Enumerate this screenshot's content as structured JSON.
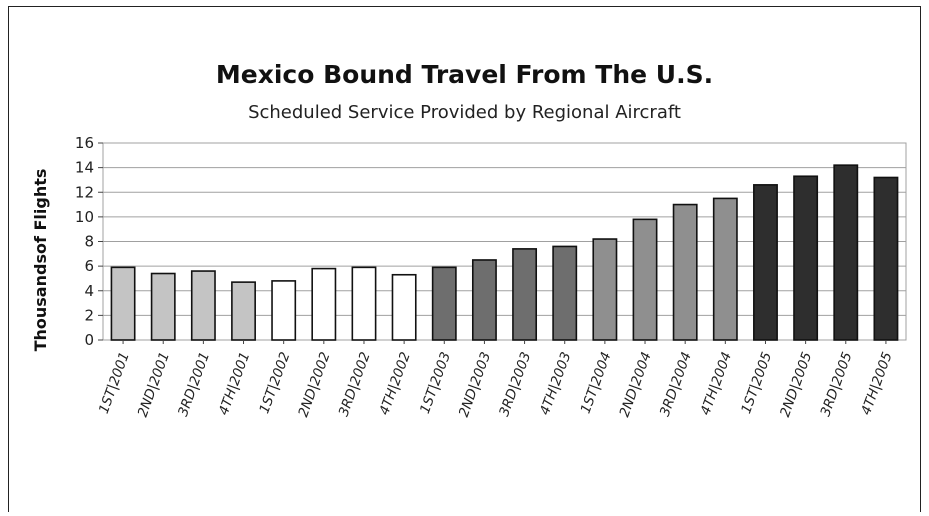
{
  "chart_data": {
    "type": "bar",
    "title": "Mexico Bound Travel From The U.S.",
    "subtitle": "Scheduled Service Provided by Regional Aircraft",
    "xlabel": "",
    "ylabel": "Thousandsof Flights",
    "ylim": [
      0,
      16
    ],
    "yticks": [
      0,
      2,
      4,
      6,
      8,
      10,
      12,
      14,
      16
    ],
    "grid": true,
    "categories": [
      "1ST|2001",
      "2ND|2001",
      "3RD|2001",
      "4TH|2001",
      "1ST|2002",
      "2ND|2002",
      "3RD|2002",
      "4TH|2002",
      "1ST|2003",
      "2ND|2003",
      "3RD|2003",
      "4TH|2003",
      "1ST|2004",
      "2ND|2004",
      "3RD|2004",
      "4TH|2004",
      "1ST|2005",
      "2ND|2005",
      "3RD|2005",
      "4TH|2005"
    ],
    "values": [
      5.9,
      5.4,
      5.6,
      4.7,
      4.8,
      5.8,
      5.9,
      5.3,
      5.9,
      6.5,
      7.4,
      7.6,
      8.2,
      9.8,
      11.0,
      11.5,
      12.6,
      13.3,
      14.2,
      13.2
    ],
    "year_colors": {
      "2001": "#c4c4c4",
      "2002": "#ffffff",
      "2003": "#6e6e6e",
      "2004": "#8f8f8f",
      "2005": "#2e2e2e"
    },
    "bar_edge_color": "#111111",
    "grid_color": "#a0a0a0",
    "plot_background": "#ffffff"
  }
}
